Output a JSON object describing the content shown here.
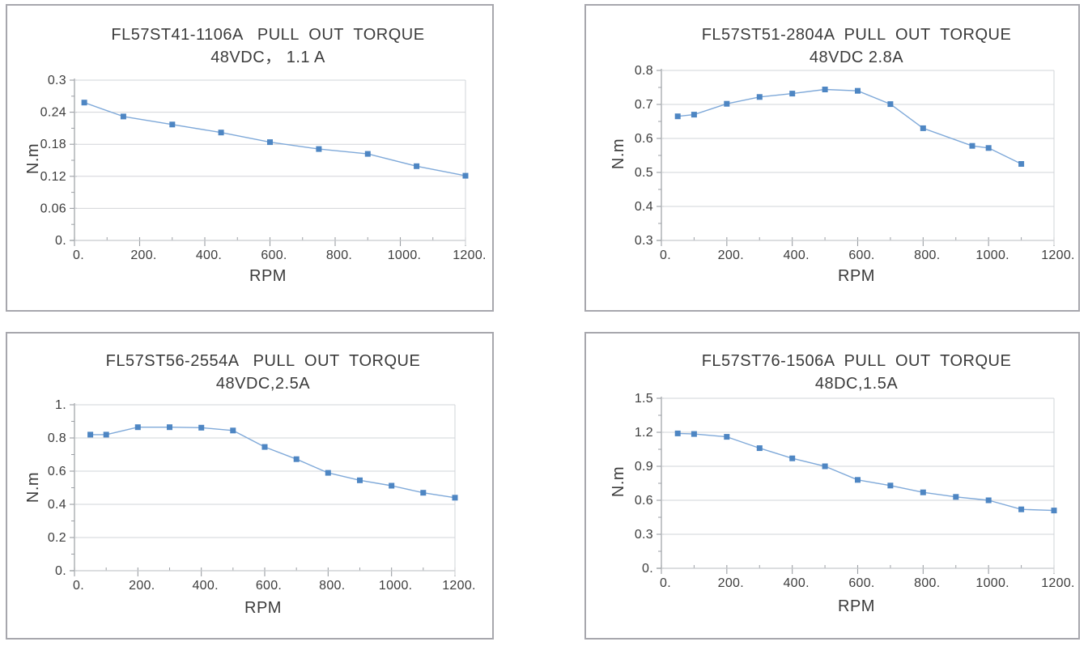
{
  "page": {
    "background": "#ffffff",
    "panel_border_color": "#a7a7ad"
  },
  "colors": {
    "series_line": "#7fa9d9",
    "marker_fill": "#4e86c3",
    "gridline": "#d2d4d8",
    "axis": "#9b9fa4",
    "text": "#3b3b3b"
  },
  "chart_data": [
    {
      "type": "line",
      "title": "FL57ST41-1106A   PULL  OUT  TORQUE",
      "subtitle": "48VDC， 1.1 A",
      "xlabel": "RPM",
      "ylabel": "N.m",
      "xlim": [
        0,
        1200
      ],
      "ylim": [
        0,
        0.3
      ],
      "grid": "horizontal",
      "legend": "none",
      "x_ticks": {
        "values": [
          0,
          200,
          400,
          600,
          800,
          1000,
          1200
        ],
        "labels": [
          "0.",
          "200.",
          "400.",
          "600.",
          "800.",
          "1000.",
          "1200."
        ]
      },
      "y_ticks": {
        "values": [
          0,
          0.06,
          0.12,
          0.18,
          0.24,
          0.3
        ],
        "labels": [
          "0.",
          "0.06",
          "0.12",
          "0.18",
          "0.24",
          "0.3"
        ]
      },
      "x_minor_step": 100,
      "y_minor_step": 0.03,
      "series": [
        {
          "name": "pull-out-torque",
          "x": [
            30,
            150,
            300,
            450,
            600,
            750,
            900,
            1050,
            1200
          ],
          "y": [
            0.258,
            0.232,
            0.217,
            0.202,
            0.184,
            0.171,
            0.162,
            0.139,
            0.121
          ]
        }
      ]
    },
    {
      "type": "line",
      "title": "FL57ST51-2804A  PULL  OUT  TORQUE",
      "subtitle": "48VDC 2.8A",
      "xlabel": "RPM",
      "ylabel": "N.m",
      "xlim": [
        0,
        1200
      ],
      "ylim": [
        0.3,
        0.8
      ],
      "grid": "horizontal",
      "legend": "none",
      "x_ticks": {
        "values": [
          0,
          200,
          400,
          600,
          800,
          1000,
          1200
        ],
        "labels": [
          "0.",
          "200.",
          "400.",
          "600.",
          "800.",
          "1000.",
          "1200."
        ]
      },
      "y_ticks": {
        "values": [
          0.3,
          0.4,
          0.5,
          0.6,
          0.7,
          0.8
        ],
        "labels": [
          "0.3",
          "0.4",
          "0.5",
          "0.6",
          "0.7",
          "0.8"
        ]
      },
      "x_minor_step": 100,
      "y_minor_step": 0.05,
      "series": [
        {
          "name": "pull-out-torque",
          "x": [
            50,
            100,
            200,
            300,
            400,
            500,
            600,
            700,
            800,
            950,
            1000,
            1100
          ],
          "y": [
            0.665,
            0.67,
            0.702,
            0.722,
            0.732,
            0.744,
            0.74,
            0.701,
            0.63,
            0.578,
            0.572,
            0.525
          ]
        }
      ]
    },
    {
      "type": "line",
      "title": "FL57ST56-2554A   PULL  OUT  TORQUE",
      "subtitle": "48VDC,2.5A",
      "xlabel": "RPM",
      "ylabel": "N.m",
      "xlim": [
        0,
        1200
      ],
      "ylim": [
        0,
        1
      ],
      "grid": "horizontal",
      "legend": "none",
      "x_ticks": {
        "values": [
          0,
          200,
          400,
          600,
          800,
          1000,
          1200
        ],
        "labels": [
          "0.",
          "200.",
          "400.",
          "600.",
          "800.",
          "1000.",
          "1200."
        ]
      },
      "y_ticks": {
        "values": [
          0,
          0.2,
          0.4,
          0.6,
          0.8,
          1
        ],
        "labels": [
          "0.",
          "0.2",
          "0.4",
          "0.6",
          "0.8",
          "1."
        ]
      },
      "x_minor_step": 100,
      "y_minor_step": 0.1,
      "series": [
        {
          "name": "pull-out-torque",
          "x": [
            50,
            100,
            200,
            300,
            400,
            500,
            600,
            700,
            800,
            900,
            1000,
            1100,
            1200
          ],
          "y": [
            0.82,
            0.82,
            0.865,
            0.865,
            0.862,
            0.845,
            0.746,
            0.672,
            0.59,
            0.545,
            0.512,
            0.47,
            0.44
          ]
        }
      ]
    },
    {
      "type": "line",
      "title": "FL57ST76-1506A  PULL  OUT  TORQUE",
      "subtitle": "48DC,1.5A",
      "xlabel": "RPM",
      "ylabel": "N.m",
      "xlim": [
        0,
        1200
      ],
      "ylim": [
        0,
        1.5
      ],
      "grid": "horizontal",
      "legend": "none",
      "x_ticks": {
        "values": [
          0,
          200,
          400,
          600,
          800,
          1000,
          1200
        ],
        "labels": [
          "0.",
          "200.",
          "400.",
          "600.",
          "800.",
          "1000.",
          "1200."
        ]
      },
      "y_ticks": {
        "values": [
          0,
          0.3,
          0.6,
          0.9,
          1.2,
          1.5
        ],
        "labels": [
          "0.",
          "0.3",
          "0.6",
          "0.9",
          "1.2",
          "1.5"
        ]
      },
      "x_minor_step": 100,
      "y_minor_step": 0.15,
      "series": [
        {
          "name": "pull-out-torque",
          "x": [
            50,
            100,
            200,
            300,
            400,
            500,
            600,
            700,
            800,
            900,
            1000,
            1100,
            1200
          ],
          "y": [
            1.19,
            1.185,
            1.16,
            1.06,
            0.97,
            0.9,
            0.78,
            0.73,
            0.67,
            0.63,
            0.6,
            0.52,
            0.51
          ]
        }
      ]
    }
  ]
}
